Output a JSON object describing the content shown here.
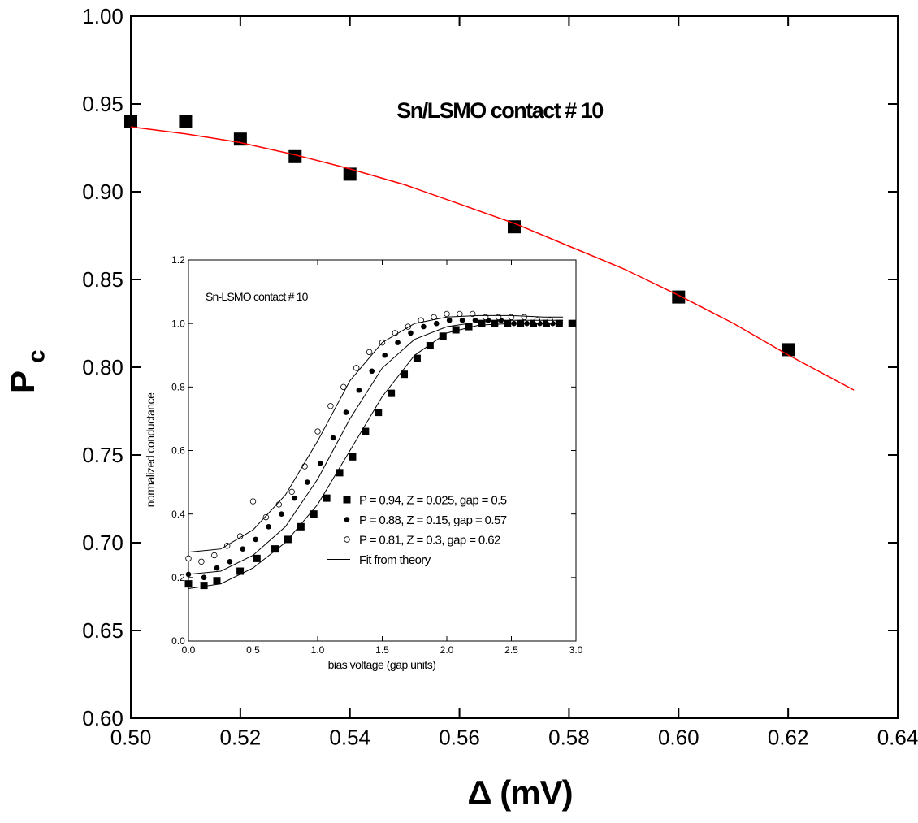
{
  "chart_data": [
    {
      "type": "scatter",
      "title": "Sn/LSMO contact # 10",
      "x_label": "Δ (mV)",
      "y_label": "P",
      "y_label_sub": "c",
      "xlim": [
        0.5,
        0.64
      ],
      "ylim": [
        0.6,
        1.0
      ],
      "xticks": [
        {
          "value": 0.5,
          "label": "0.50"
        },
        {
          "value": 0.52,
          "label": "0.52"
        },
        {
          "value": 0.54,
          "label": "0.54"
        },
        {
          "value": 0.56,
          "label": "0.56"
        },
        {
          "value": 0.58,
          "label": "0.58"
        },
        {
          "value": 0.6,
          "label": "0.60"
        },
        {
          "value": 0.62,
          "label": "0.62"
        },
        {
          "value": 0.64,
          "label": "0.64"
        }
      ],
      "yticks": [
        {
          "value": 0.6,
          "label": "0.60"
        },
        {
          "value": 0.65,
          "label": "0.65"
        },
        {
          "value": 0.7,
          "label": "0.70"
        },
        {
          "value": 0.75,
          "label": "0.75"
        },
        {
          "value": 0.8,
          "label": "0.80"
        },
        {
          "value": 0.85,
          "label": "0.85"
        },
        {
          "value": 0.9,
          "label": "0.90"
        },
        {
          "value": 0.95,
          "label": "0.95"
        },
        {
          "value": 1.0,
          "label": "1.00"
        }
      ],
      "series": [
        {
          "marker": "square",
          "color": "#000000",
          "x": [
            0.5,
            0.51,
            0.52,
            0.53,
            0.54,
            0.57,
            0.6,
            0.62
          ],
          "values": [
            0.94,
            0.94,
            0.93,
            0.92,
            0.91,
            0.88,
            0.84,
            0.81
          ]
        },
        {
          "marker": "line",
          "color": "#ff0000",
          "x": [
            0.5,
            0.51,
            0.52,
            0.53,
            0.54,
            0.55,
            0.56,
            0.57,
            0.58,
            0.59,
            0.6,
            0.61,
            0.62,
            0.632
          ],
          "values": [
            0.937,
            0.933,
            0.928,
            0.921,
            0.913,
            0.904,
            0.893,
            0.882,
            0.869,
            0.856,
            0.841,
            0.825,
            0.807,
            0.787
          ]
        }
      ]
    },
    {
      "type": "scatter",
      "title": "Sn-LSMO contact # 10",
      "x_label": "bias voltage (gap units)",
      "y_label": "normalized conductance",
      "xlim": [
        0,
        3
      ],
      "ylim": [
        0,
        1.2
      ],
      "xticks": [
        {
          "value": 0,
          "label": "0.0"
        },
        {
          "value": 0.5,
          "label": "0.5"
        },
        {
          "value": 1,
          "label": "1.0"
        },
        {
          "value": 1.5,
          "label": "1.5"
        },
        {
          "value": 2,
          "label": "2.0"
        },
        {
          "value": 2.5,
          "label": "2.5"
        },
        {
          "value": 3,
          "label": "3.0"
        }
      ],
      "yticks": [
        {
          "value": 0,
          "label": "0.0"
        },
        {
          "value": 0.2,
          "label": "0.2"
        },
        {
          "value": 0.4,
          "label": "0.4"
        },
        {
          "value": 0.6,
          "label": "0.6"
        },
        {
          "value": 0.8,
          "label": "0.8"
        },
        {
          "value": 1,
          "label": "1.0"
        },
        {
          "value": 1.2,
          "label": "1.2"
        }
      ],
      "series": [
        {
          "name": "P = 0.94, Z = 0.025, gap = 0.5",
          "marker": "square",
          "color": "#000000",
          "x": [
            0,
            0.12,
            0.22,
            0.4,
            0.53,
            0.67,
            0.77,
            0.87,
            0.97,
            1.07,
            1.17,
            1.27,
            1.37,
            1.47,
            1.57,
            1.67,
            1.77,
            1.87,
            1.97,
            2.07,
            2.17,
            2.27,
            2.37,
            2.47,
            2.57,
            2.67,
            2.77,
            2.87,
            2.97
          ],
          "values": [
            0.18,
            0.175,
            0.19,
            0.22,
            0.26,
            0.29,
            0.32,
            0.36,
            0.4,
            0.45,
            0.53,
            0.58,
            0.66,
            0.72,
            0.78,
            0.84,
            0.89,
            0.93,
            0.96,
            0.98,
            0.99,
            1.0,
            1.0,
            1.0,
            1.0,
            1.0,
            1.0,
            1.0,
            1.0
          ]
        },
        {
          "name": "P = 0.88, Z = 0.15, gap = 0.57",
          "marker": "circle",
          "color": "#000000",
          "x": [
            0,
            0.12,
            0.22,
            0.32,
            0.42,
            0.52,
            0.62,
            0.72,
            0.82,
            0.92,
            1.02,
            1.12,
            1.22,
            1.32,
            1.42,
            1.52,
            1.62,
            1.72,
            1.82,
            1.92,
            2.02,
            2.12,
            2.22,
            2.32,
            2.42,
            2.52,
            2.62,
            2.72,
            2.82
          ],
          "values": [
            0.21,
            0.2,
            0.23,
            0.25,
            0.29,
            0.32,
            0.36,
            0.4,
            0.45,
            0.5,
            0.56,
            0.64,
            0.72,
            0.79,
            0.85,
            0.9,
            0.94,
            0.97,
            0.99,
            1.0,
            1.01,
            1.01,
            1.01,
            1.01,
            1.01,
            1.0,
            1.0,
            1.0,
            1.0
          ]
        },
        {
          "name": "P = 0.81, Z = 0.3, gap = 0.62",
          "marker": "open-circle",
          "color": "#000000",
          "x": [
            0,
            0.1,
            0.2,
            0.3,
            0.4,
            0.5,
            0.6,
            0.7,
            0.8,
            0.9,
            1.0,
            1.1,
            1.2,
            1.3,
            1.4,
            1.5,
            1.6,
            1.7,
            1.8,
            1.9,
            2.0,
            2.1,
            2.2,
            2.3,
            2.4,
            2.5,
            2.6,
            2.7,
            2.8
          ],
          "values": [
            0.26,
            0.25,
            0.27,
            0.3,
            0.33,
            0.44,
            0.39,
            0.43,
            0.47,
            0.55,
            0.66,
            0.74,
            0.8,
            0.86,
            0.91,
            0.94,
            0.97,
            0.99,
            1.01,
            1.02,
            1.03,
            1.03,
            1.03,
            1.02,
            1.02,
            1.02,
            1.02,
            1.01,
            1.01
          ]
        },
        {
          "name": "Fit from theory",
          "marker": "line",
          "color": "#000000",
          "x": [
            0,
            0.25,
            0.5,
            0.75,
            1,
            1.25,
            1.5,
            1.75,
            2,
            2.25,
            2.5,
            2.75,
            2.9
          ],
          "values": [
            0.165,
            0.18,
            0.23,
            0.31,
            0.43,
            0.6,
            0.77,
            0.9,
            0.97,
            0.995,
            1.0,
            1.0,
            1.0
          ]
        },
        {
          "marker": "line",
          "color": "#000000",
          "x": [
            0,
            0.25,
            0.5,
            0.75,
            1,
            1.25,
            1.5,
            1.75,
            2,
            2.25,
            2.5,
            2.75,
            2.9
          ],
          "values": [
            0.21,
            0.22,
            0.27,
            0.36,
            0.51,
            0.7,
            0.86,
            0.95,
            0.99,
            1.005,
            1.01,
            1.01,
            1.01
          ]
        },
        {
          "marker": "line",
          "color": "#000000",
          "x": [
            0,
            0.25,
            0.5,
            0.75,
            1,
            1.25,
            1.5,
            1.75,
            2,
            2.25,
            2.5,
            2.75,
            2.9
          ],
          "values": [
            0.28,
            0.29,
            0.35,
            0.46,
            0.63,
            0.82,
            0.94,
            1.0,
            1.02,
            1.025,
            1.025,
            1.02,
            1.02
          ]
        }
      ]
    }
  ]
}
